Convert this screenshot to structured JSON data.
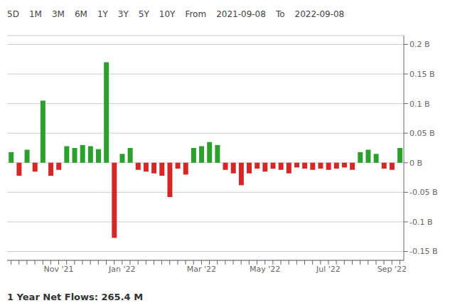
{
  "chart_data": {
    "type": "bar",
    "subtitle": "1 Year Net Flows: 265.4 M",
    "annotations": [
      "5D",
      "1M",
      "3M",
      "6M",
      "1Y",
      "3Y",
      "5Y",
      "10Y",
      "From",
      "2021-09-08",
      "To",
      "2022-09-08"
    ],
    "categories": [
      null,
      null,
      null,
      null,
      null,
      null,
      "Nov '21",
      null,
      null,
      null,
      null,
      null,
      null,
      null,
      "Jan '22",
      null,
      null,
      null,
      null,
      null,
      null,
      null,
      null,
      null,
      "Mar '22",
      null,
      null,
      null,
      null,
      null,
      null,
      null,
      "May '22",
      null,
      null,
      null,
      null,
      null,
      null,
      null,
      "Jul '22",
      null,
      null,
      null,
      null,
      null,
      null,
      null,
      "Sep '22",
      null
    ],
    "values": [
      0.018,
      -0.022,
      0.022,
      -0.015,
      0.105,
      -0.022,
      -0.012,
      0.028,
      0.025,
      0.03,
      0.028,
      0.023,
      0.17,
      -0.127,
      0.015,
      0.025,
      -0.012,
      -0.015,
      -0.018,
      -0.022,
      -0.058,
      -0.01,
      -0.02,
      0.025,
      0.028,
      0.035,
      0.03,
      -0.012,
      -0.018,
      -0.038,
      -0.018,
      -0.01,
      -0.015,
      -0.01,
      -0.012,
      -0.018,
      -0.008,
      -0.01,
      -0.012,
      -0.01,
      -0.012,
      -0.01,
      -0.008,
      -0.012,
      0.018,
      0.022,
      0.015,
      -0.01,
      -0.012,
      0.025
    ],
    "colors": [
      "#2ca02c",
      "#d62728",
      "#2ca02c",
      "#d62728",
      "#2ca02c",
      "#d62728",
      "#d62728",
      "#2ca02c",
      "#2ca02c",
      "#2ca02c",
      "#2ca02c",
      "#2ca02c",
      "#2ca02c",
      "#d62728",
      "#2ca02c",
      "#2ca02c",
      "#d62728",
      "#d62728",
      "#d62728",
      "#d62728",
      "#d62728",
      "#d62728",
      "#d62728",
      "#2ca02c",
      "#2ca02c",
      "#2ca02c",
      "#2ca02c",
      "#d62728",
      "#d62728",
      "#d62728",
      "#d62728",
      "#d62728",
      "#d62728",
      "#d62728",
      "#d62728",
      "#d62728",
      "#d62728",
      "#d62728",
      "#d62728",
      "#d62728",
      "#d62728",
      "#d62728",
      "#d62728",
      "#d62728",
      "#2ca02c",
      "#2ca02c",
      "#2ca02c",
      "#d62728",
      "#d62728",
      "#2ca02c"
    ],
    "ylim": [
      -0.165,
      0.215
    ],
    "yticks": [
      {
        "value": -0.15,
        "label": "-0.15 B"
      },
      {
        "value": -0.1,
        "label": "-0.1 B"
      },
      {
        "value": -0.05,
        "label": "-0.05 B"
      },
      {
        "value": 0,
        "label": "0 B"
      },
      {
        "value": 0.05,
        "label": "0.05 B"
      },
      {
        "value": 0.1,
        "label": "0.1 B"
      },
      {
        "value": 0.15,
        "label": "0.15 B"
      },
      {
        "value": 0.2,
        "label": "0.2 B"
      }
    ],
    "grid": true
  }
}
